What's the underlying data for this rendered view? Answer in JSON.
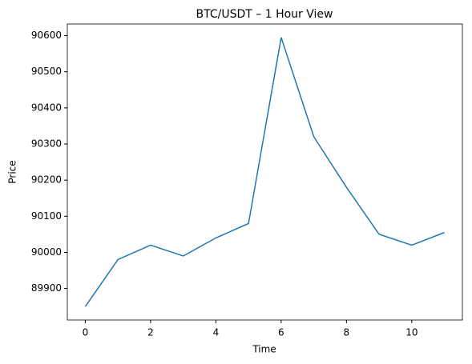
{
  "chart_data": {
    "type": "line",
    "title": "BTC/USDT – 1 Hour View",
    "x_label": "Time",
    "y_label": "Price",
    "x": [
      0,
      1,
      2,
      3,
      4,
      5,
      6,
      7,
      8,
      9,
      10,
      11
    ],
    "series": [
      {
        "name": "BTC/USDT",
        "color": "#1f77b4",
        "values": [
          89850,
          89980,
          90020,
          89990,
          90040,
          90080,
          90595,
          90320,
          90180,
          90050,
          90020,
          90055
        ]
      }
    ],
    "xlim": [
      -0.55,
      11.55
    ],
    "xticks": [
      0,
      2,
      4,
      6,
      8,
      10
    ],
    "ylim": [
      89812.75,
      90632.25
    ],
    "yticks": [
      89900,
      90000,
      90100,
      90200,
      90300,
      90400,
      90500,
      90600
    ],
    "grid": false,
    "legend": false
  }
}
